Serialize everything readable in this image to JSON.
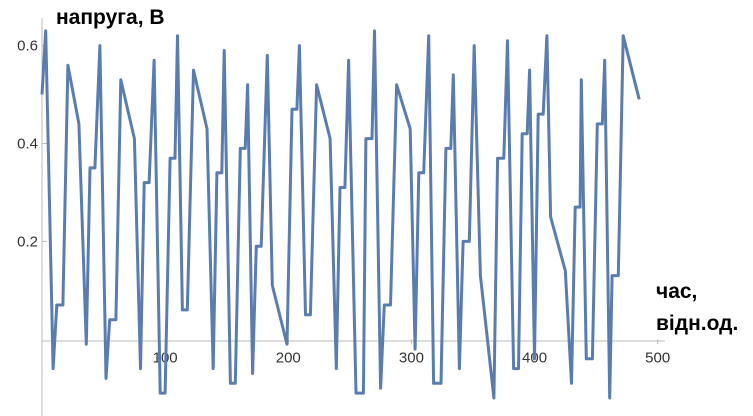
{
  "chart_data": {
    "type": "line",
    "ylabel": "напруга, В",
    "xlabel_lines": [
      "час,",
      "відн.од."
    ],
    "x_ticks": [
      100,
      200,
      300,
      400,
      500
    ],
    "y_ticks": [
      0.2,
      0.4,
      0.6
    ],
    "xlim": [
      0,
      510
    ],
    "ylim": [
      -0.12,
      0.64
    ],
    "grid": false,
    "series": [
      {
        "color": "#5a7db0",
        "points": [
          [
            0,
            0.5
          ],
          [
            3,
            0.63
          ],
          [
            5,
            0.4
          ],
          [
            9,
            -0.06
          ],
          [
            12,
            0.07
          ],
          [
            17,
            0.07
          ],
          [
            21,
            0.56
          ],
          [
            30,
            0.44
          ],
          [
            36,
            -0.01
          ],
          [
            39,
            0.35
          ],
          [
            43,
            0.35
          ],
          [
            47,
            0.6
          ],
          [
            52,
            -0.08
          ],
          [
            55,
            0.04
          ],
          [
            60,
            0.04
          ],
          [
            64,
            0.53
          ],
          [
            75,
            0.41
          ],
          [
            80,
            -0.06
          ],
          [
            83,
            0.32
          ],
          [
            87,
            0.32
          ],
          [
            91,
            0.57
          ],
          [
            96,
            -0.11
          ],
          [
            100,
            -0.11
          ],
          [
            104,
            0.37
          ],
          [
            108,
            0.37
          ],
          [
            110,
            0.62
          ],
          [
            114,
            0.06
          ],
          [
            118,
            0.06
          ],
          [
            123,
            0.55
          ],
          [
            134,
            0.43
          ],
          [
            139,
            -0.06
          ],
          [
            142,
            0.34
          ],
          [
            146,
            0.34
          ],
          [
            148,
            0.59
          ],
          [
            153,
            -0.09
          ],
          [
            157,
            -0.09
          ],
          [
            161,
            0.39
          ],
          [
            165,
            0.39
          ],
          [
            167,
            0.52
          ],
          [
            171,
            -0.07
          ],
          [
            174,
            0.19
          ],
          [
            178,
            0.19
          ],
          [
            183,
            0.58
          ],
          [
            187,
            0.11
          ],
          [
            199,
            -0.01
          ],
          [
            203,
            0.47
          ],
          [
            207,
            0.47
          ],
          [
            209,
            0.6
          ],
          [
            214,
            0.05
          ],
          [
            218,
            0.05
          ],
          [
            223,
            0.52
          ],
          [
            234,
            0.41
          ],
          [
            239,
            -0.06
          ],
          [
            242,
            0.31
          ],
          [
            246,
            0.31
          ],
          [
            249,
            0.57
          ],
          [
            255,
            -0.11
          ],
          [
            261,
            -0.11
          ],
          [
            263,
            0.41
          ],
          [
            268,
            0.41
          ],
          [
            270,
            0.63
          ],
          [
            275,
            -0.1
          ],
          [
            278,
            0.07
          ],
          [
            283,
            0.07
          ],
          [
            288,
            0.52
          ],
          [
            299,
            0.43
          ],
          [
            303,
            -0.02
          ],
          [
            306,
            0.34
          ],
          [
            310,
            0.34
          ],
          [
            314,
            0.62
          ],
          [
            318,
            -0.09
          ],
          [
            324,
            -0.09
          ],
          [
            328,
            0.39
          ],
          [
            332,
            0.39
          ],
          [
            334,
            0.54
          ],
          [
            339,
            -0.06
          ],
          [
            342,
            0.2
          ],
          [
            347,
            0.2
          ],
          [
            351,
            0.6
          ],
          [
            356,
            0.13
          ],
          [
            367,
            -0.12
          ],
          [
            370,
            0.37
          ],
          [
            375,
            0.37
          ],
          [
            378,
            0.61
          ],
          [
            383,
            -0.06
          ],
          [
            387,
            -0.06
          ],
          [
            390,
            0.42
          ],
          [
            394,
            0.42
          ],
          [
            396,
            0.55
          ],
          [
            400,
            -0.04
          ],
          [
            403,
            0.46
          ],
          [
            407,
            0.46
          ],
          [
            410,
            0.62
          ],
          [
            413,
            0.25
          ],
          [
            425,
            0.14
          ],
          [
            430,
            -0.09
          ],
          [
            433,
            0.27
          ],
          [
            437,
            0.27
          ],
          [
            438,
            0.53
          ],
          [
            442,
            -0.04
          ],
          [
            447,
            -0.04
          ],
          [
            451,
            0.44
          ],
          [
            455,
            0.44
          ],
          [
            457,
            0.57
          ],
          [
            461,
            -0.12
          ],
          [
            463,
            0.13
          ],
          [
            468,
            0.13
          ],
          [
            472,
            0.62
          ],
          [
            485,
            0.49
          ]
        ]
      }
    ]
  }
}
